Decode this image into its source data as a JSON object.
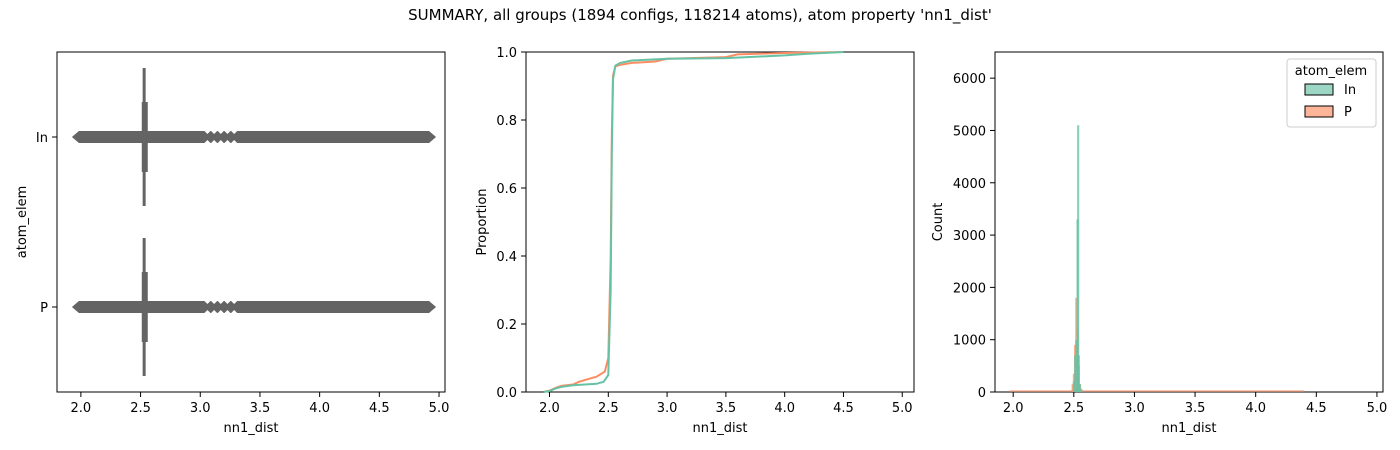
{
  "figure": {
    "title": "SUMMARY, all groups (1894 configs, 118214 atoms), atom property 'nn1_dist'"
  },
  "colors": {
    "In": "#66c2a5",
    "P": "#fc8d62",
    "box": "#646464"
  },
  "chart_data": [
    {
      "type": "box",
      "xlabel": "nn1_dist",
      "ylabel": "atom_elem",
      "xlim": [
        1.8,
        5.05
      ],
      "xticks": [
        "2.0",
        "2.5",
        "3.0",
        "3.5",
        "4.0",
        "4.5",
        "5.0"
      ],
      "categories": [
        "In",
        "P"
      ],
      "boxes": [
        {
          "name": "In",
          "q1": 2.51,
          "median": 2.53,
          "q3": 2.55,
          "whisker_low": 2.51,
          "whisker_high": 2.55,
          "flier_min": 1.95,
          "flier_max": 4.95
        },
        {
          "name": "P",
          "q1": 2.51,
          "median": 2.53,
          "q3": 2.55,
          "whisker_low": 2.51,
          "whisker_high": 2.55,
          "flier_min": 1.95,
          "flier_max": 4.95
        }
      ]
    },
    {
      "type": "line",
      "subtype": "ecdf",
      "xlabel": "nn1_dist",
      "ylabel": "Proportion",
      "xlim": [
        1.8,
        5.1
      ],
      "ylim": [
        0,
        1.0
      ],
      "xticks": [
        "2.0",
        "2.5",
        "3.0",
        "3.5",
        "4.0",
        "4.5",
        "5.0"
      ],
      "yticks": [
        "0.0",
        "0.2",
        "0.4",
        "0.6",
        "0.8",
        "1.0"
      ],
      "series": [
        {
          "name": "In",
          "points": [
            [
              1.95,
              0.0
            ],
            [
              2.0,
              0.003
            ],
            [
              2.05,
              0.01
            ],
            [
              2.1,
              0.015
            ],
            [
              2.2,
              0.02
            ],
            [
              2.3,
              0.022
            ],
            [
              2.4,
              0.024
            ],
            [
              2.46,
              0.03
            ],
            [
              2.5,
              0.05
            ],
            [
              2.52,
              0.3
            ],
            [
              2.53,
              0.7
            ],
            [
              2.54,
              0.92
            ],
            [
              2.56,
              0.96
            ],
            [
              2.6,
              0.968
            ],
            [
              2.7,
              0.975
            ],
            [
              3.0,
              0.98
            ],
            [
              3.5,
              0.982
            ],
            [
              4.0,
              0.99
            ],
            [
              4.2,
              0.995
            ],
            [
              4.5,
              1.0
            ]
          ]
        },
        {
          "name": "P",
          "points": [
            [
              1.95,
              0.0
            ],
            [
              2.0,
              0.004
            ],
            [
              2.05,
              0.012
            ],
            [
              2.1,
              0.018
            ],
            [
              2.2,
              0.022
            ],
            [
              2.25,
              0.03
            ],
            [
              2.3,
              0.035
            ],
            [
              2.4,
              0.045
            ],
            [
              2.47,
              0.06
            ],
            [
              2.5,
              0.1
            ],
            [
              2.52,
              0.4
            ],
            [
              2.53,
              0.75
            ],
            [
              2.54,
              0.93
            ],
            [
              2.56,
              0.958
            ],
            [
              2.6,
              0.962
            ],
            [
              2.7,
              0.968
            ],
            [
              2.9,
              0.972
            ],
            [
              3.0,
              0.98
            ],
            [
              3.5,
              0.985
            ],
            [
              3.6,
              0.993
            ],
            [
              4.0,
              0.997
            ],
            [
              4.5,
              1.0
            ]
          ]
        }
      ]
    },
    {
      "type": "histogram",
      "xlabel": "nn1_dist",
      "ylabel": "Count",
      "xlim": [
        1.85,
        5.05
      ],
      "ylim": [
        0,
        6500
      ],
      "xticks": [
        "2.0",
        "2.5",
        "3.0",
        "3.5",
        "4.0",
        "4.5",
        "5.0"
      ],
      "yticks": [
        "0",
        "1000",
        "2000",
        "3000",
        "4000",
        "5000",
        "6000"
      ],
      "legend": {
        "title": "atom_elem",
        "entries": [
          "In",
          "P"
        ],
        "placement": "top-right"
      },
      "series": [
        {
          "name": "P",
          "bins": [
            [
              2.49,
              150
            ],
            [
              2.5,
              350
            ],
            [
              2.51,
              900
            ],
            [
              2.52,
              1800
            ],
            [
              2.53,
              1200
            ],
            [
              2.54,
              500
            ],
            [
              2.55,
              150
            ],
            [
              2.56,
              60
            ]
          ]
        },
        {
          "name": "In",
          "bins": [
            [
              2.5,
              200
            ],
            [
              2.51,
              700
            ],
            [
              2.52,
              1000
            ],
            [
              2.53,
              3300
            ],
            [
              2.535,
              5100
            ],
            [
              2.54,
              700
            ],
            [
              2.55,
              150
            ],
            [
              2.56,
              50
            ]
          ]
        }
      ]
    }
  ]
}
